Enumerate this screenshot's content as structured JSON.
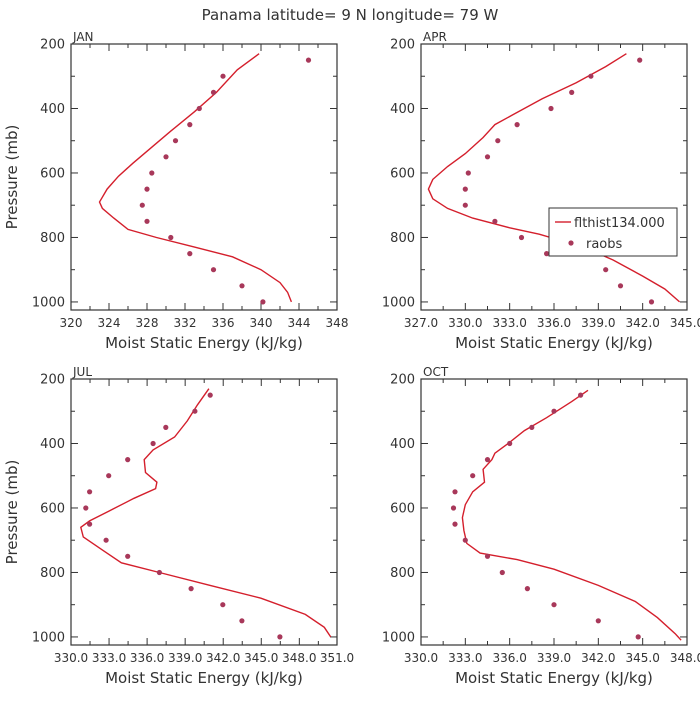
{
  "figure_title": "Panama  latitude= 9 N longitude= 79 W",
  "colors": {
    "model": "#d41f2c",
    "obs": "#a8385a",
    "axis": "#333333"
  },
  "chart_data": [
    {
      "type": "line",
      "panel_label": "JAN",
      "xlabel": "Moist Static Energy (kJ/kg)",
      "ylabel": "Pressure (mb)",
      "xlim": [
        320,
        348
      ],
      "ylim": [
        1025,
        200
      ],
      "xticks": [
        320,
        324,
        328,
        332,
        336,
        340,
        344,
        348
      ],
      "xtick_labels": [
        "320",
        "324",
        "328",
        "332",
        "336",
        "340",
        "344",
        "348"
      ],
      "yticks": [
        200,
        400,
        600,
        800,
        1000
      ],
      "ytick_labels": [
        "200",
        "400",
        "600",
        "800",
        "1000"
      ],
      "minor_y": 100,
      "minor_x": 2,
      "series": [
        {
          "kind": "line",
          "points": [
            [
              339.8,
              230
            ],
            [
              337.5,
              280
            ],
            [
              335.3,
              350
            ],
            [
              333.0,
              410
            ],
            [
              330.5,
              470
            ],
            [
              328.5,
              520
            ],
            [
              326.5,
              570
            ],
            [
              325.0,
              610
            ],
            [
              323.8,
              650
            ],
            [
              323.2,
              680
            ],
            [
              323.0,
              690
            ],
            [
              323.3,
              710
            ],
            [
              324.5,
              740
            ],
            [
              326.0,
              775
            ],
            [
              329.0,
              800
            ],
            [
              333.0,
              830
            ],
            [
              337.0,
              860
            ],
            [
              340.0,
              900
            ],
            [
              342.0,
              940
            ],
            [
              342.8,
              970
            ],
            [
              343.2,
              1000
            ]
          ]
        },
        {
          "kind": "scatter",
          "points": [
            [
              345.0,
              250
            ],
            [
              336.0,
              300
            ],
            [
              335.0,
              350
            ],
            [
              333.5,
              400
            ],
            [
              332.5,
              450
            ],
            [
              331.0,
              500
            ],
            [
              330.0,
              550
            ],
            [
              328.5,
              600
            ],
            [
              328.0,
              650
            ],
            [
              327.5,
              700
            ],
            [
              328.0,
              750
            ],
            [
              330.5,
              800
            ],
            [
              332.5,
              850
            ],
            [
              335.0,
              900
            ],
            [
              338.0,
              950
            ],
            [
              340.2,
              1000
            ]
          ]
        }
      ]
    },
    {
      "type": "line",
      "panel_label": "APR",
      "xlabel": "Moist Static Energy (kJ/kg)",
      "ylabel": "",
      "xlim": [
        327,
        345
      ],
      "ylim": [
        1025,
        200
      ],
      "xticks": [
        327,
        330,
        333,
        336,
        339,
        342,
        345
      ],
      "xtick_labels": [
        "327.0",
        "330.0",
        "333.0",
        "336.0",
        "339.0",
        "342.0",
        "345.0"
      ],
      "yticks": [
        200,
        400,
        600,
        800,
        1000
      ],
      "ytick_labels": [
        "200",
        "400",
        "600",
        "800",
        "1000"
      ],
      "minor_y": 100,
      "minor_x": 1.5,
      "series": [
        {
          "kind": "line",
          "points": [
            [
              340.9,
              230
            ],
            [
              339.5,
              270
            ],
            [
              337.5,
              320
            ],
            [
              335.2,
              370
            ],
            [
              333.2,
              420
            ],
            [
              332.0,
              450
            ],
            [
              331.2,
              490
            ],
            [
              330.0,
              540
            ],
            [
              328.8,
              580
            ],
            [
              327.8,
              620
            ],
            [
              327.5,
              650
            ],
            [
              327.8,
              680
            ],
            [
              328.8,
              710
            ],
            [
              330.5,
              740
            ],
            [
              333.0,
              770
            ],
            [
              335.0,
              790
            ],
            [
              338.0,
              830
            ],
            [
              340.0,
              870
            ],
            [
              342.0,
              920
            ],
            [
              343.5,
              960
            ],
            [
              344.5,
              1000
            ]
          ]
        },
        {
          "kind": "scatter",
          "points": [
            [
              341.8,
              250
            ],
            [
              338.5,
              300
            ],
            [
              337.2,
              350
            ],
            [
              335.8,
              400
            ],
            [
              333.5,
              450
            ],
            [
              332.2,
              500
            ],
            [
              331.5,
              550
            ],
            [
              330.2,
              600
            ],
            [
              330.0,
              650
            ],
            [
              330.0,
              700
            ],
            [
              332.0,
              750
            ],
            [
              333.8,
              800
            ],
            [
              335.5,
              850
            ],
            [
              339.5,
              900
            ],
            [
              340.5,
              950
            ],
            [
              342.6,
              1000
            ]
          ]
        }
      ],
      "legend": {
        "position": "right",
        "entries": [
          "flthist134.000",
          "raobs"
        ]
      }
    },
    {
      "type": "line",
      "panel_label": "JUL",
      "xlabel": "Moist Static Energy (kJ/kg)",
      "ylabel": "Pressure (mb)",
      "xlim": [
        330.03,
        351.0
      ],
      "ylim": [
        1025,
        200
      ],
      "xticks": [
        330.03,
        333.03,
        336.03,
        339.03,
        342.03,
        345.03,
        348.03,
        351.0
      ],
      "xtick_labels": [
        "330.0",
        "333.0",
        "336.0",
        "339.0",
        "342.0",
        "345.0",
        "348.0",
        "351.0"
      ],
      "yticks": [
        200,
        400,
        600,
        800,
        1000
      ],
      "ytick_labels": [
        "200",
        "400",
        "600",
        "800",
        "1000"
      ],
      "minor_y": 100,
      "minor_x": 1.5,
      "series": [
        {
          "kind": "line",
          "points": [
            [
              340.9,
              230
            ],
            [
              340.0,
              280
            ],
            [
              339.2,
              330
            ],
            [
              338.2,
              380
            ],
            [
              336.5,
              420
            ],
            [
              335.8,
              450
            ],
            [
              335.9,
              490
            ],
            [
              336.8,
              520
            ],
            [
              336.7,
              540
            ],
            [
              335.0,
              570
            ],
            [
              333.0,
              610
            ],
            [
              331.5,
              640
            ],
            [
              330.8,
              660
            ],
            [
              331.0,
              690
            ],
            [
              332.5,
              730
            ],
            [
              334.0,
              770
            ],
            [
              337.0,
              800
            ],
            [
              341.0,
              840
            ],
            [
              345.0,
              880
            ],
            [
              348.5,
              930
            ],
            [
              350.0,
              970
            ],
            [
              350.5,
              1000
            ]
          ]
        },
        {
          "kind": "scatter",
          "points": [
            [
              341.0,
              250
            ],
            [
              339.8,
              300
            ],
            [
              337.5,
              350
            ],
            [
              336.5,
              400
            ],
            [
              334.5,
              450
            ],
            [
              333.0,
              500
            ],
            [
              331.5,
              550
            ],
            [
              331.2,
              600
            ],
            [
              331.5,
              650
            ],
            [
              332.8,
              700
            ],
            [
              334.5,
              750
            ],
            [
              337.0,
              800
            ],
            [
              339.5,
              850
            ],
            [
              342.0,
              900
            ],
            [
              343.5,
              950
            ],
            [
              346.5,
              1000
            ]
          ]
        }
      ]
    },
    {
      "type": "line",
      "panel_label": "OCT",
      "xlabel": "Moist Static Energy (kJ/kg)",
      "ylabel": "",
      "xlim": [
        330,
        348
      ],
      "ylim": [
        1025,
        200
      ],
      "xticks": [
        330,
        333,
        336,
        339,
        342,
        345,
        348
      ],
      "xtick_labels": [
        "330.0",
        "333.0",
        "336.0",
        "339.0",
        "342.0",
        "345.0",
        "348.0"
      ],
      "yticks": [
        200,
        400,
        600,
        800,
        1000
      ],
      "ytick_labels": [
        "200",
        "400",
        "600",
        "800",
        "1000"
      ],
      "minor_y": 100,
      "minor_x": 1.5,
      "series": [
        {
          "kind": "line",
          "points": [
            [
              341.3,
              235
            ],
            [
              340.2,
              270
            ],
            [
              338.5,
              320
            ],
            [
              337.0,
              360
            ],
            [
              335.9,
              400
            ],
            [
              335.0,
              430
            ],
            [
              334.8,
              450
            ],
            [
              334.2,
              480
            ],
            [
              334.3,
              520
            ],
            [
              333.5,
              550
            ],
            [
              333.0,
              590
            ],
            [
              332.8,
              630
            ],
            [
              332.9,
              670
            ],
            [
              333.1,
              710
            ],
            [
              334.0,
              740
            ],
            [
              336.5,
              760
            ],
            [
              339.0,
              790
            ],
            [
              342.0,
              840
            ],
            [
              344.5,
              890
            ],
            [
              346.0,
              940
            ],
            [
              347.2,
              990
            ],
            [
              347.6,
              1010
            ]
          ]
        },
        {
          "kind": "scatter",
          "points": [
            [
              340.8,
              250
            ],
            [
              339.0,
              300
            ],
            [
              337.5,
              350
            ],
            [
              336.0,
              400
            ],
            [
              334.5,
              450
            ],
            [
              333.5,
              500
            ],
            [
              332.3,
              550
            ],
            [
              332.2,
              600
            ],
            [
              332.3,
              650
            ],
            [
              333.0,
              700
            ],
            [
              334.5,
              750
            ],
            [
              335.5,
              800
            ],
            [
              337.2,
              850
            ],
            [
              339.0,
              900
            ],
            [
              342.0,
              950
            ],
            [
              344.7,
              1000
            ]
          ]
        }
      ]
    }
  ]
}
